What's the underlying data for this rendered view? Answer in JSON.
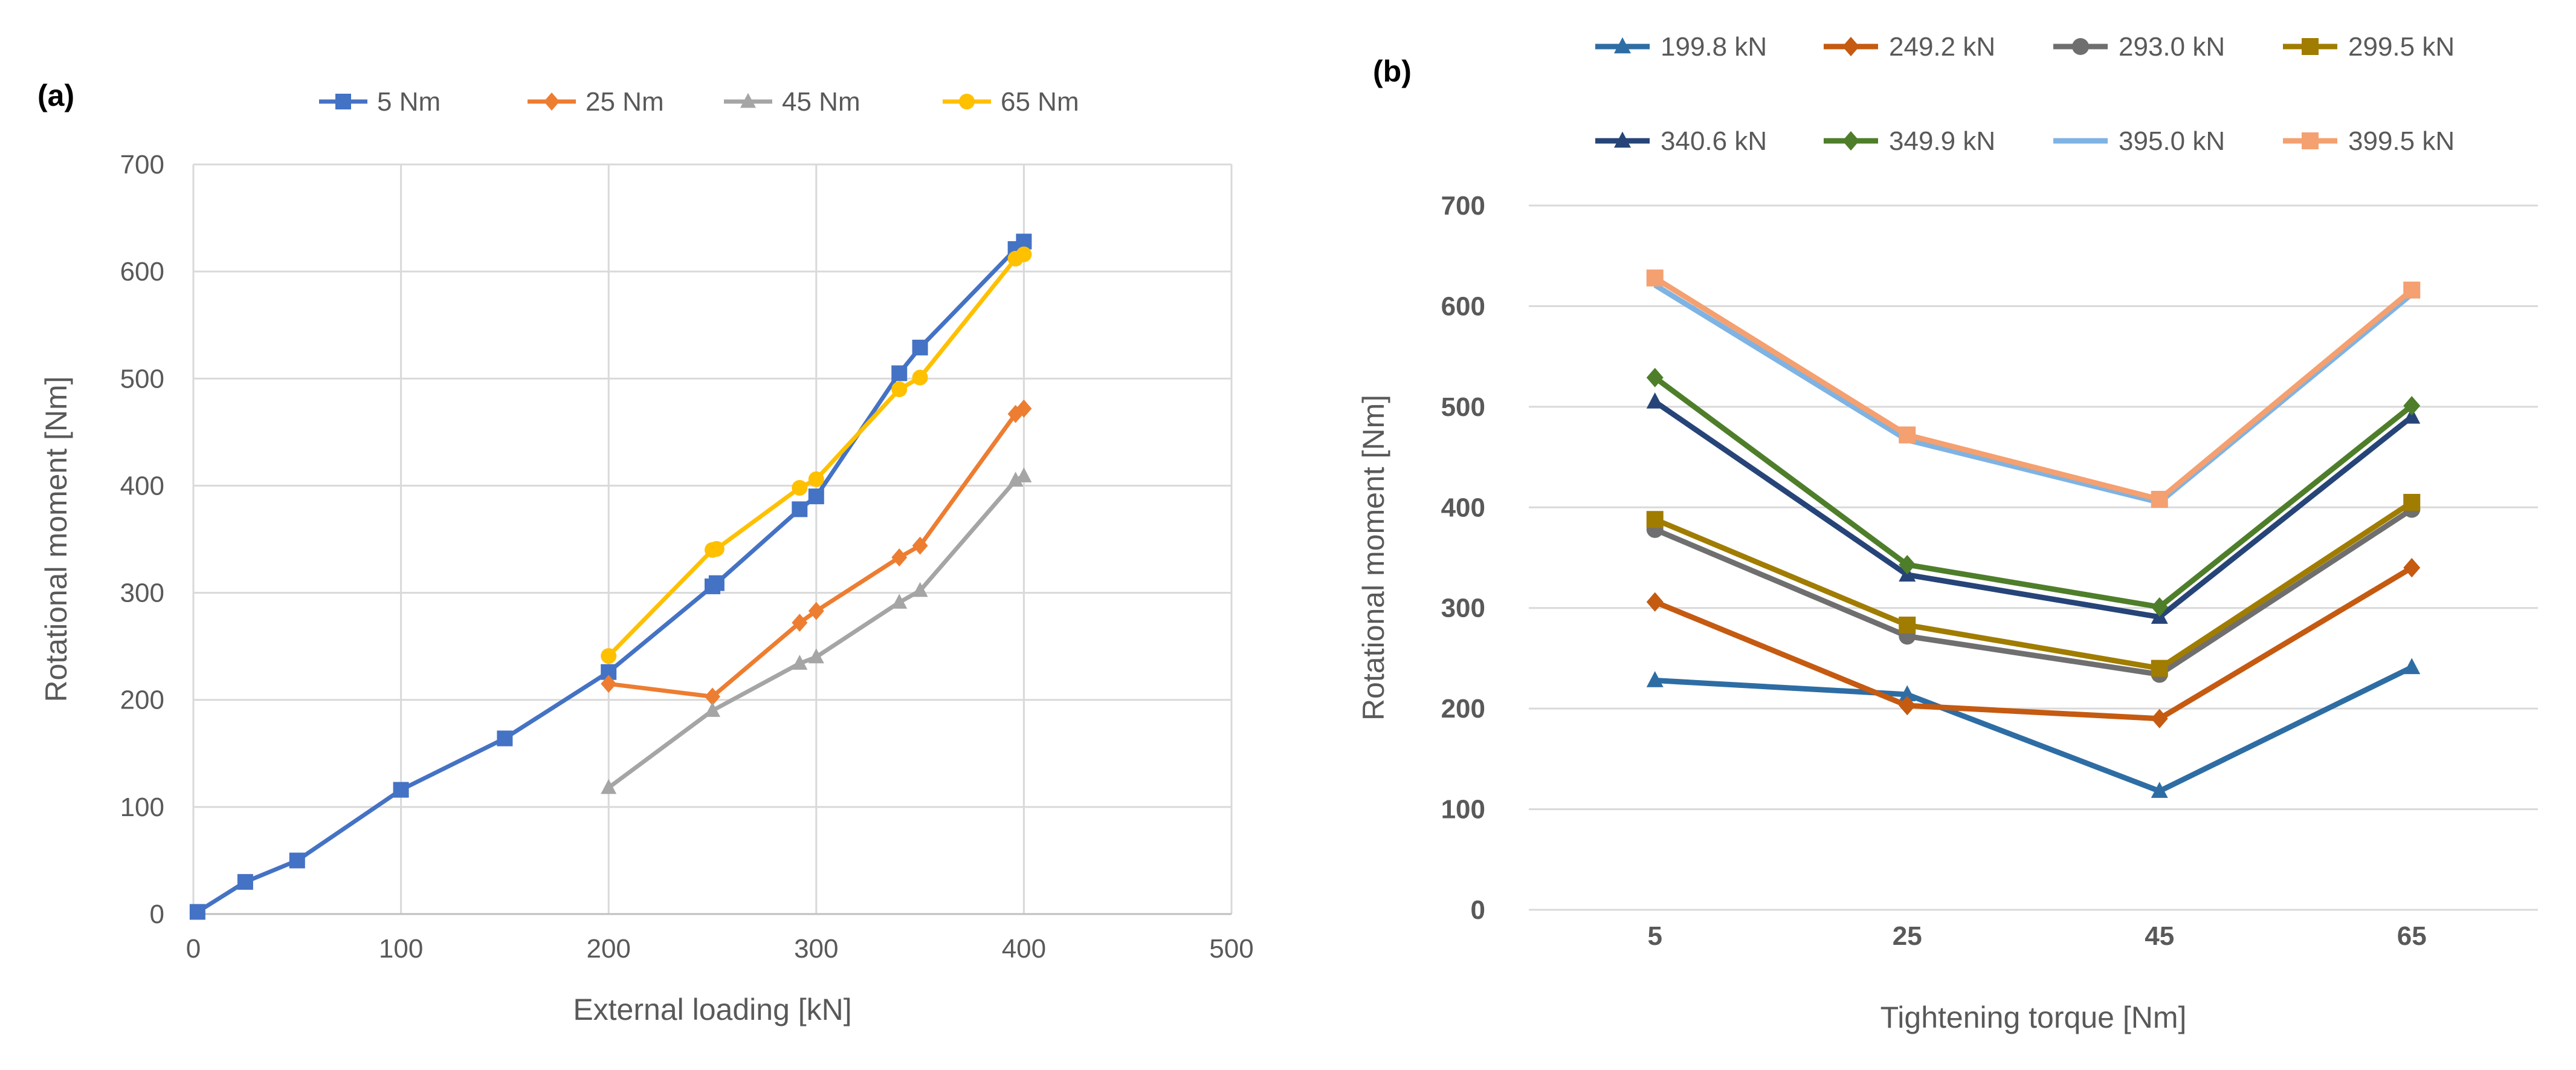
{
  "chart_data": [
    {
      "type": "line",
      "panel_label": "(a)",
      "xlabel": "External loading [kN]",
      "ylabel": "Rotational moment [Nm]",
      "xlim": [
        0,
        500
      ],
      "ylim": [
        0,
        700
      ],
      "x_ticks": [
        0,
        100,
        200,
        300,
        400,
        500
      ],
      "y_ticks": [
        0,
        100,
        200,
        300,
        400,
        500,
        600,
        700
      ],
      "grid": true,
      "legend_position": "top",
      "series": [
        {
          "name": "5 Nm",
          "color": "#4472C4",
          "marker": "square",
          "points": [
            [
              2,
              2
            ],
            [
              25,
              30
            ],
            [
              50,
              50
            ],
            [
              100,
              116
            ],
            [
              150,
              164
            ],
            [
              200,
              226
            ],
            [
              250,
              306
            ],
            [
              252,
              309
            ],
            [
              292,
              378
            ],
            [
              300,
              390
            ],
            [
              340,
              505
            ],
            [
              350,
              529
            ],
            [
              396,
              621
            ],
            [
              400,
              628
            ]
          ]
        },
        {
          "name": "25 Nm",
          "color": "#ED7D31",
          "marker": "diamond",
          "points": [
            [
              200,
              215
            ],
            [
              250,
              203
            ],
            [
              292,
              272
            ],
            [
              300,
              283
            ],
            [
              340,
              333
            ],
            [
              350,
              344
            ],
            [
              396,
              467
            ],
            [
              400,
              472
            ]
          ]
        },
        {
          "name": "45 Nm",
          "color": "#A5A5A5",
          "marker": "triangle",
          "points": [
            [
              200,
              118
            ],
            [
              250,
              190
            ],
            [
              292,
              234
            ],
            [
              300,
              240
            ],
            [
              340,
              291
            ],
            [
              350,
              302
            ],
            [
              396,
              405
            ],
            [
              400,
              409
            ]
          ]
        },
        {
          "name": "65 Nm",
          "color": "#FFC000",
          "marker": "circle",
          "points": [
            [
              200,
              241
            ],
            [
              250,
              340
            ],
            [
              252,
              341
            ],
            [
              292,
              398
            ],
            [
              300,
              406
            ],
            [
              340,
              490
            ],
            [
              350,
              501
            ],
            [
              396,
              612
            ],
            [
              400,
              616
            ]
          ]
        }
      ]
    },
    {
      "type": "line",
      "panel_label": "(b)",
      "xlabel": "Tightening torque [Nm]",
      "ylabel": "Rotational moment [Nm]",
      "categories": [
        "5",
        "25",
        "45",
        "65"
      ],
      "ylim": [
        0,
        700
      ],
      "y_ticks": [
        0,
        100,
        200,
        300,
        400,
        500,
        600,
        700
      ],
      "grid": true,
      "legend_position": "top",
      "series": [
        {
          "name": "199.8 kN",
          "color": "#2E6DA4",
          "marker": "triangle",
          "values": [
            228,
            214,
            118,
            241
          ]
        },
        {
          "name": "249.2 kN",
          "color": "#C55A11",
          "marker": "diamond",
          "values": [
            306,
            203,
            190,
            340
          ]
        },
        {
          "name": "293.0 kN",
          "color": "#6F6F6F",
          "marker": "circle",
          "values": [
            378,
            272,
            234,
            398
          ]
        },
        {
          "name": "299.5 kN",
          "color": "#A07C00",
          "marker": "square",
          "values": [
            388,
            283,
            240,
            405
          ]
        },
        {
          "name": "340.6 kN",
          "color": "#264478",
          "marker": "triangle",
          "values": [
            505,
            333,
            291,
            490
          ]
        },
        {
          "name": "349.9 kN",
          "color": "#4E7E2A",
          "marker": "diamond",
          "values": [
            529,
            343,
            301,
            501
          ]
        },
        {
          "name": "395.0 kN",
          "color": "#7EB3E3",
          "marker": "none",
          "values": [
            621,
            467,
            405,
            612
          ]
        },
        {
          "name": "399.5 kN",
          "color": "#F4A070",
          "marker": "square",
          "values": [
            628,
            472,
            408,
            616
          ]
        }
      ]
    }
  ]
}
